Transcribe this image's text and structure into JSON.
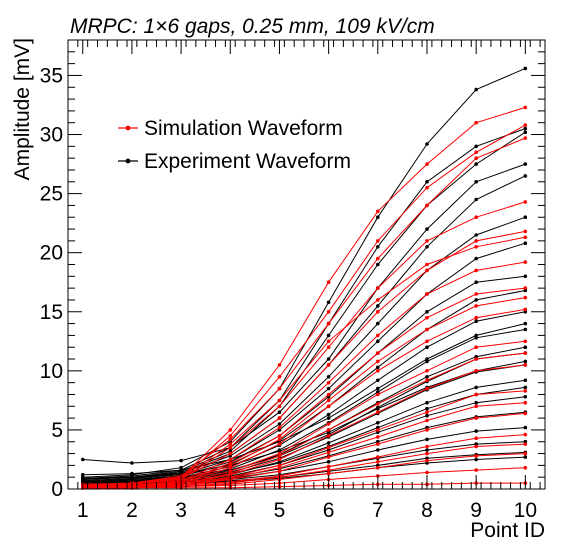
{
  "chart_data": {
    "type": "line",
    "title": "MRPC: 1×6 gaps, 0.25 mm, 109 kV/cm",
    "xlabel": "Point ID",
    "ylabel": "Amplitude [mV]",
    "x": [
      1,
      2,
      3,
      4,
      5,
      6,
      7,
      8,
      9,
      10
    ],
    "xlim": [
      0.7,
      10.4
    ],
    "ylim": [
      0,
      38
    ],
    "xticks": [
      "1",
      "2",
      "3",
      "4",
      "5",
      "6",
      "7",
      "8",
      "9",
      "10"
    ],
    "yticks": [
      "0",
      "5",
      "10",
      "15",
      "20",
      "25",
      "30",
      "35"
    ],
    "grid": false,
    "legend_position": "top-left",
    "colors": {
      "simulation": "#ff0000",
      "experiment": "#000000"
    },
    "series": [
      {
        "name": "Simulation Waveform",
        "color": "#ff0000",
        "group": "simulation",
        "values": [
          0.4,
          0.5,
          1.0,
          5.0,
          10.5,
          17.5,
          23.5,
          27.5,
          31.0,
          32.3
        ]
      },
      {
        "name": "",
        "color": "#ff0000",
        "group": "simulation",
        "values": [
          0.3,
          0.4,
          0.9,
          4.5,
          9.5,
          15.0,
          21.0,
          25.5,
          28.5,
          30.8
        ]
      },
      {
        "name": "",
        "color": "#ff0000",
        "group": "simulation",
        "values": [
          0.3,
          0.5,
          1.1,
          4.2,
          8.5,
          14.0,
          19.5,
          24.0,
          28.0,
          29.7
        ]
      },
      {
        "name": "",
        "color": "#ff0000",
        "group": "simulation",
        "values": [
          0.2,
          0.4,
          0.8,
          3.5,
          7.0,
          12.0,
          17.0,
          21.0,
          23.0,
          24.3
        ]
      },
      {
        "name": "",
        "color": "#ff0000",
        "group": "simulation",
        "values": [
          0.3,
          0.4,
          0.9,
          3.0,
          6.0,
          10.5,
          15.0,
          18.5,
          21.0,
          21.8
        ]
      },
      {
        "name": "",
        "color": "#ff0000",
        "group": "simulation",
        "values": [
          0.2,
          0.3,
          0.7,
          2.5,
          5.2,
          9.0,
          13.0,
          16.5,
          18.5,
          19.2
        ]
      },
      {
        "name": "",
        "color": "#ff0000",
        "group": "simulation",
        "values": [
          0.2,
          0.3,
          0.6,
          2.2,
          4.5,
          8.0,
          11.5,
          14.5,
          16.5,
          17.0
        ]
      },
      {
        "name": "",
        "color": "#ff0000",
        "group": "simulation",
        "values": [
          0.2,
          0.3,
          0.5,
          1.8,
          3.8,
          7.0,
          10.0,
          12.5,
          14.5,
          15.2
        ]
      },
      {
        "name": "",
        "color": "#ff0000",
        "group": "simulation",
        "values": [
          0.1,
          0.2,
          0.5,
          1.5,
          3.0,
          5.5,
          8.0,
          10.0,
          12.0,
          12.5
        ]
      },
      {
        "name": "",
        "color": "#ff0000",
        "group": "simulation",
        "values": [
          0.1,
          0.2,
          0.4,
          1.2,
          2.5,
          4.5,
          6.5,
          8.5,
          10.0,
          10.5
        ]
      },
      {
        "name": "",
        "color": "#ff0000",
        "group": "simulation",
        "values": [
          0.1,
          0.2,
          0.4,
          1.0,
          2.0,
          3.5,
          5.0,
          6.5,
          8.0,
          8.3
        ]
      },
      {
        "name": "",
        "color": "#ff0000",
        "group": "simulation",
        "values": [
          0.1,
          0.2,
          0.3,
          0.8,
          1.5,
          2.7,
          3.8,
          5.0,
          6.0,
          6.4
        ]
      },
      {
        "name": "",
        "color": "#ff0000",
        "group": "simulation",
        "values": [
          0.1,
          0.1,
          0.3,
          0.6,
          1.1,
          1.9,
          2.7,
          3.6,
          4.3,
          4.6
        ]
      },
      {
        "name": "",
        "color": "#ff0000",
        "group": "simulation",
        "values": [
          0.1,
          0.1,
          0.2,
          0.4,
          0.8,
          1.3,
          1.8,
          2.4,
          2.8,
          3.0
        ]
      },
      {
        "name": "",
        "color": "#ff0000",
        "group": "simulation",
        "values": [
          0.1,
          0.1,
          0.2,
          0.3,
          0.5,
          0.8,
          1.1,
          1.4,
          1.6,
          1.8
        ]
      },
      {
        "name": "",
        "color": "#ff0000",
        "group": "simulation",
        "values": [
          0.1,
          0.1,
          0.1,
          0.1,
          0.2,
          0.3,
          0.4,
          0.4,
          0.5,
          0.5
        ]
      },
      {
        "name": "",
        "color": "#ff0000",
        "group": "simulation",
        "values": [
          0.3,
          0.4,
          0.9,
          3.8,
          7.5,
          12.5,
          16.0,
          19.0,
          20.5,
          21.3
        ]
      },
      {
        "name": "",
        "color": "#ff0000",
        "group": "simulation",
        "values": [
          0.2,
          0.3,
          0.6,
          2.0,
          4.2,
          7.5,
          10.8,
          13.5,
          15.5,
          16.2
        ]
      },
      {
        "name": "",
        "color": "#ff0000",
        "group": "simulation",
        "values": [
          0.1,
          0.2,
          0.4,
          1.3,
          2.8,
          5.0,
          7.2,
          9.2,
          11.0,
          11.5
        ]
      },
      {
        "name": "",
        "color": "#ff0000",
        "group": "simulation",
        "values": [
          0.1,
          0.2,
          0.3,
          0.9,
          1.8,
          3.1,
          4.4,
          5.8,
          7.0,
          7.3
        ]
      },
      {
        "name": "",
        "color": "#ff0000",
        "group": "simulation",
        "values": [
          0.1,
          0.1,
          0.2,
          0.5,
          1.0,
          1.6,
          2.3,
          3.0,
          3.6,
          3.8
        ]
      },
      {
        "name": "Experiment Waveform",
        "color": "#000000",
        "group": "experiment",
        "values": [
          1.0,
          1.2,
          1.8,
          4.0,
          8.5,
          15.8,
          23.0,
          29.2,
          33.8,
          35.6
        ]
      },
      {
        "name": "",
        "color": "#000000",
        "group": "experiment",
        "values": [
          0.9,
          1.1,
          1.6,
          3.5,
          7.5,
          14.0,
          20.5,
          26.0,
          29.0,
          30.5
        ]
      },
      {
        "name": "",
        "color": "#000000",
        "group": "experiment",
        "values": [
          0.8,
          1.0,
          1.5,
          3.2,
          7.0,
          13.0,
          19.0,
          24.0,
          27.5,
          30.2
        ]
      },
      {
        "name": "",
        "color": "#000000",
        "group": "experiment",
        "values": [
          2.5,
          2.2,
          2.4,
          3.5,
          6.5,
          11.0,
          17.0,
          22.0,
          26.0,
          27.5
        ]
      },
      {
        "name": "",
        "color": "#000000",
        "group": "experiment",
        "values": [
          0.8,
          1.0,
          1.4,
          3.0,
          6.0,
          10.5,
          15.5,
          20.5,
          24.5,
          26.5
        ]
      },
      {
        "name": "",
        "color": "#000000",
        "group": "experiment",
        "values": [
          0.7,
          0.9,
          1.3,
          2.8,
          5.5,
          9.5,
          14.0,
          18.5,
          21.5,
          23.0
        ]
      },
      {
        "name": "",
        "color": "#000000",
        "group": "experiment",
        "values": [
          0.7,
          0.9,
          1.2,
          2.5,
          5.0,
          8.5,
          12.5,
          16.5,
          19.5,
          20.8
        ]
      },
      {
        "name": "",
        "color": "#000000",
        "group": "experiment",
        "values": [
          0.6,
          0.8,
          1.1,
          2.3,
          4.5,
          7.8,
          11.5,
          15.0,
          17.5,
          18.0
        ]
      },
      {
        "name": "",
        "color": "#000000",
        "group": "experiment",
        "values": [
          0.6,
          0.8,
          1.1,
          2.1,
          4.1,
          7.0,
          10.3,
          13.5,
          16.0,
          16.8
        ]
      },
      {
        "name": "",
        "color": "#000000",
        "group": "experiment",
        "values": [
          0.6,
          0.7,
          1.0,
          1.9,
          3.7,
          6.3,
          9.2,
          12.0,
          14.2,
          15.0
        ]
      },
      {
        "name": "",
        "color": "#000000",
        "group": "experiment",
        "values": [
          0.5,
          0.7,
          0.9,
          1.7,
          3.3,
          5.6,
          8.2,
          10.8,
          12.8,
          13.5
        ]
      },
      {
        "name": "",
        "color": "#000000",
        "group": "experiment",
        "values": [
          0.5,
          0.6,
          0.9,
          1.5,
          2.9,
          5.0,
          7.3,
          9.5,
          11.2,
          12.0
        ]
      },
      {
        "name": "",
        "color": "#000000",
        "group": "experiment",
        "values": [
          0.5,
          0.6,
          0.8,
          1.4,
          2.6,
          4.4,
          6.4,
          8.4,
          9.9,
          10.5
        ]
      },
      {
        "name": "",
        "color": "#000000",
        "group": "experiment",
        "values": [
          0.5,
          0.6,
          0.8,
          1.2,
          2.3,
          3.9,
          5.6,
          7.3,
          8.6,
          9.2
        ]
      },
      {
        "name": "",
        "color": "#000000",
        "group": "experiment",
        "values": [
          0.4,
          0.5,
          0.7,
          1.1,
          2.0,
          3.3,
          4.8,
          6.2,
          7.3,
          7.8
        ]
      },
      {
        "name": "",
        "color": "#000000",
        "group": "experiment",
        "values": [
          0.4,
          0.5,
          0.7,
          1.0,
          1.7,
          2.8,
          4.0,
          5.2,
          6.1,
          6.5
        ]
      },
      {
        "name": "",
        "color": "#000000",
        "group": "experiment",
        "values": [
          0.4,
          0.5,
          0.6,
          0.9,
          1.5,
          2.3,
          3.3,
          4.2,
          4.9,
          5.2
        ]
      },
      {
        "name": "",
        "color": "#000000",
        "group": "experiment",
        "values": [
          0.4,
          0.4,
          0.6,
          0.8,
          1.2,
          1.9,
          2.6,
          3.3,
          3.8,
          4.0
        ]
      },
      {
        "name": "",
        "color": "#000000",
        "group": "experiment",
        "values": [
          0.3,
          0.4,
          0.5,
          0.7,
          1.0,
          1.5,
          2.0,
          2.6,
          2.9,
          3.1
        ]
      },
      {
        "name": "",
        "color": "#000000",
        "group": "experiment",
        "values": [
          0.3,
          0.4,
          0.5,
          0.6,
          0.9,
          1.3,
          1.8,
          2.2,
          2.5,
          2.7
        ]
      },
      {
        "name": "",
        "color": "#000000",
        "group": "experiment",
        "values": [
          1.2,
          1.3,
          1.6,
          2.5,
          4.0,
          6.0,
          8.5,
          11.0,
          13.0,
          14.0
        ]
      },
      {
        "name": "",
        "color": "#000000",
        "group": "experiment",
        "values": [
          0.9,
          1.0,
          1.3,
          2.0,
          3.2,
          4.8,
          6.8,
          8.6,
          10.0,
          10.8
        ]
      },
      {
        "name": "",
        "color": "#000000",
        "group": "experiment",
        "values": [
          0.6,
          0.8,
          1.0,
          1.6,
          2.8,
          4.6,
          6.9,
          9.1,
          11.0,
          11.5
        ]
      },
      {
        "name": "",
        "color": "#000000",
        "group": "experiment",
        "values": [
          0.4,
          0.5,
          0.8,
          1.3,
          2.2,
          3.6,
          5.2,
          6.8,
          8.0,
          8.6
        ]
      }
    ]
  }
}
